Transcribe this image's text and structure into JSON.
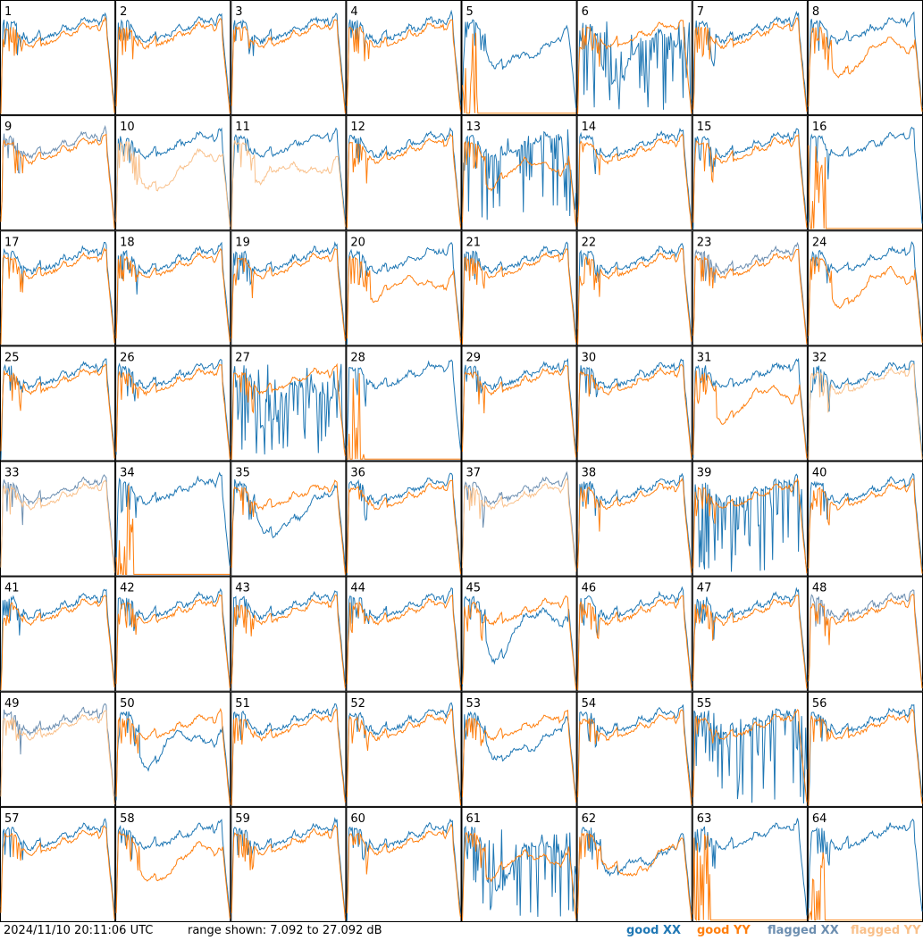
{
  "chart_data": {
    "type": "line",
    "panels": [
      "1",
      "2",
      "3",
      "4",
      "5",
      "6",
      "7",
      "8",
      "9",
      "10",
      "11",
      "12",
      "13",
      "14",
      "15",
      "16",
      "17",
      "18",
      "19",
      "20",
      "21",
      "22",
      "23",
      "24",
      "25",
      "26",
      "27",
      "28",
      "29",
      "30",
      "31",
      "32",
      "33",
      "34",
      "35",
      "36",
      "37",
      "38",
      "39",
      "40",
      "41",
      "42",
      "43",
      "44",
      "45",
      "46",
      "47",
      "48",
      "49",
      "50",
      "51",
      "52",
      "53",
      "54",
      "55",
      "56",
      "57",
      "58",
      "59",
      "60",
      "61",
      "62",
      "63",
      "64"
    ],
    "panel_status": {
      "xx_flagged": [
        "9",
        "23",
        "33",
        "37",
        "48",
        "49"
      ],
      "yy_flagged": [
        "10",
        "11",
        "32",
        "33",
        "37",
        "49"
      ],
      "xx_spiky": [
        "6",
        "13",
        "27",
        "39",
        "55",
        "61"
      ],
      "yy_spiky": [
        "5",
        "16",
        "28",
        "34",
        "63",
        "64"
      ],
      "xx_low": [
        "5",
        "6",
        "27",
        "35",
        "45",
        "50",
        "53",
        "61",
        "62"
      ],
      "yy_low": [
        "8",
        "10",
        "11",
        "13",
        "20",
        "24",
        "31",
        "58",
        "61",
        "62"
      ]
    },
    "series": [
      {
        "name": "good XX",
        "color": "#1f77b4"
      },
      {
        "name": "good YY",
        "color": "#ff7f0e"
      },
      {
        "name": "flagged XX",
        "color": "#6c8eb0"
      },
      {
        "name": "flagged YY",
        "color": "#f9c08a"
      }
    ],
    "yrange_db": [
      7.092,
      27.092
    ]
  },
  "footer": {
    "timestamp": "2024/11/10 20:11:06 UTC",
    "range_text": "range shown: 7.092 to 27.092 dB"
  },
  "legend": {
    "good_xx": "good XX",
    "good_yy": "good YY",
    "flagged_xx": "flagged XX",
    "flagged_yy": "flagged YY"
  }
}
